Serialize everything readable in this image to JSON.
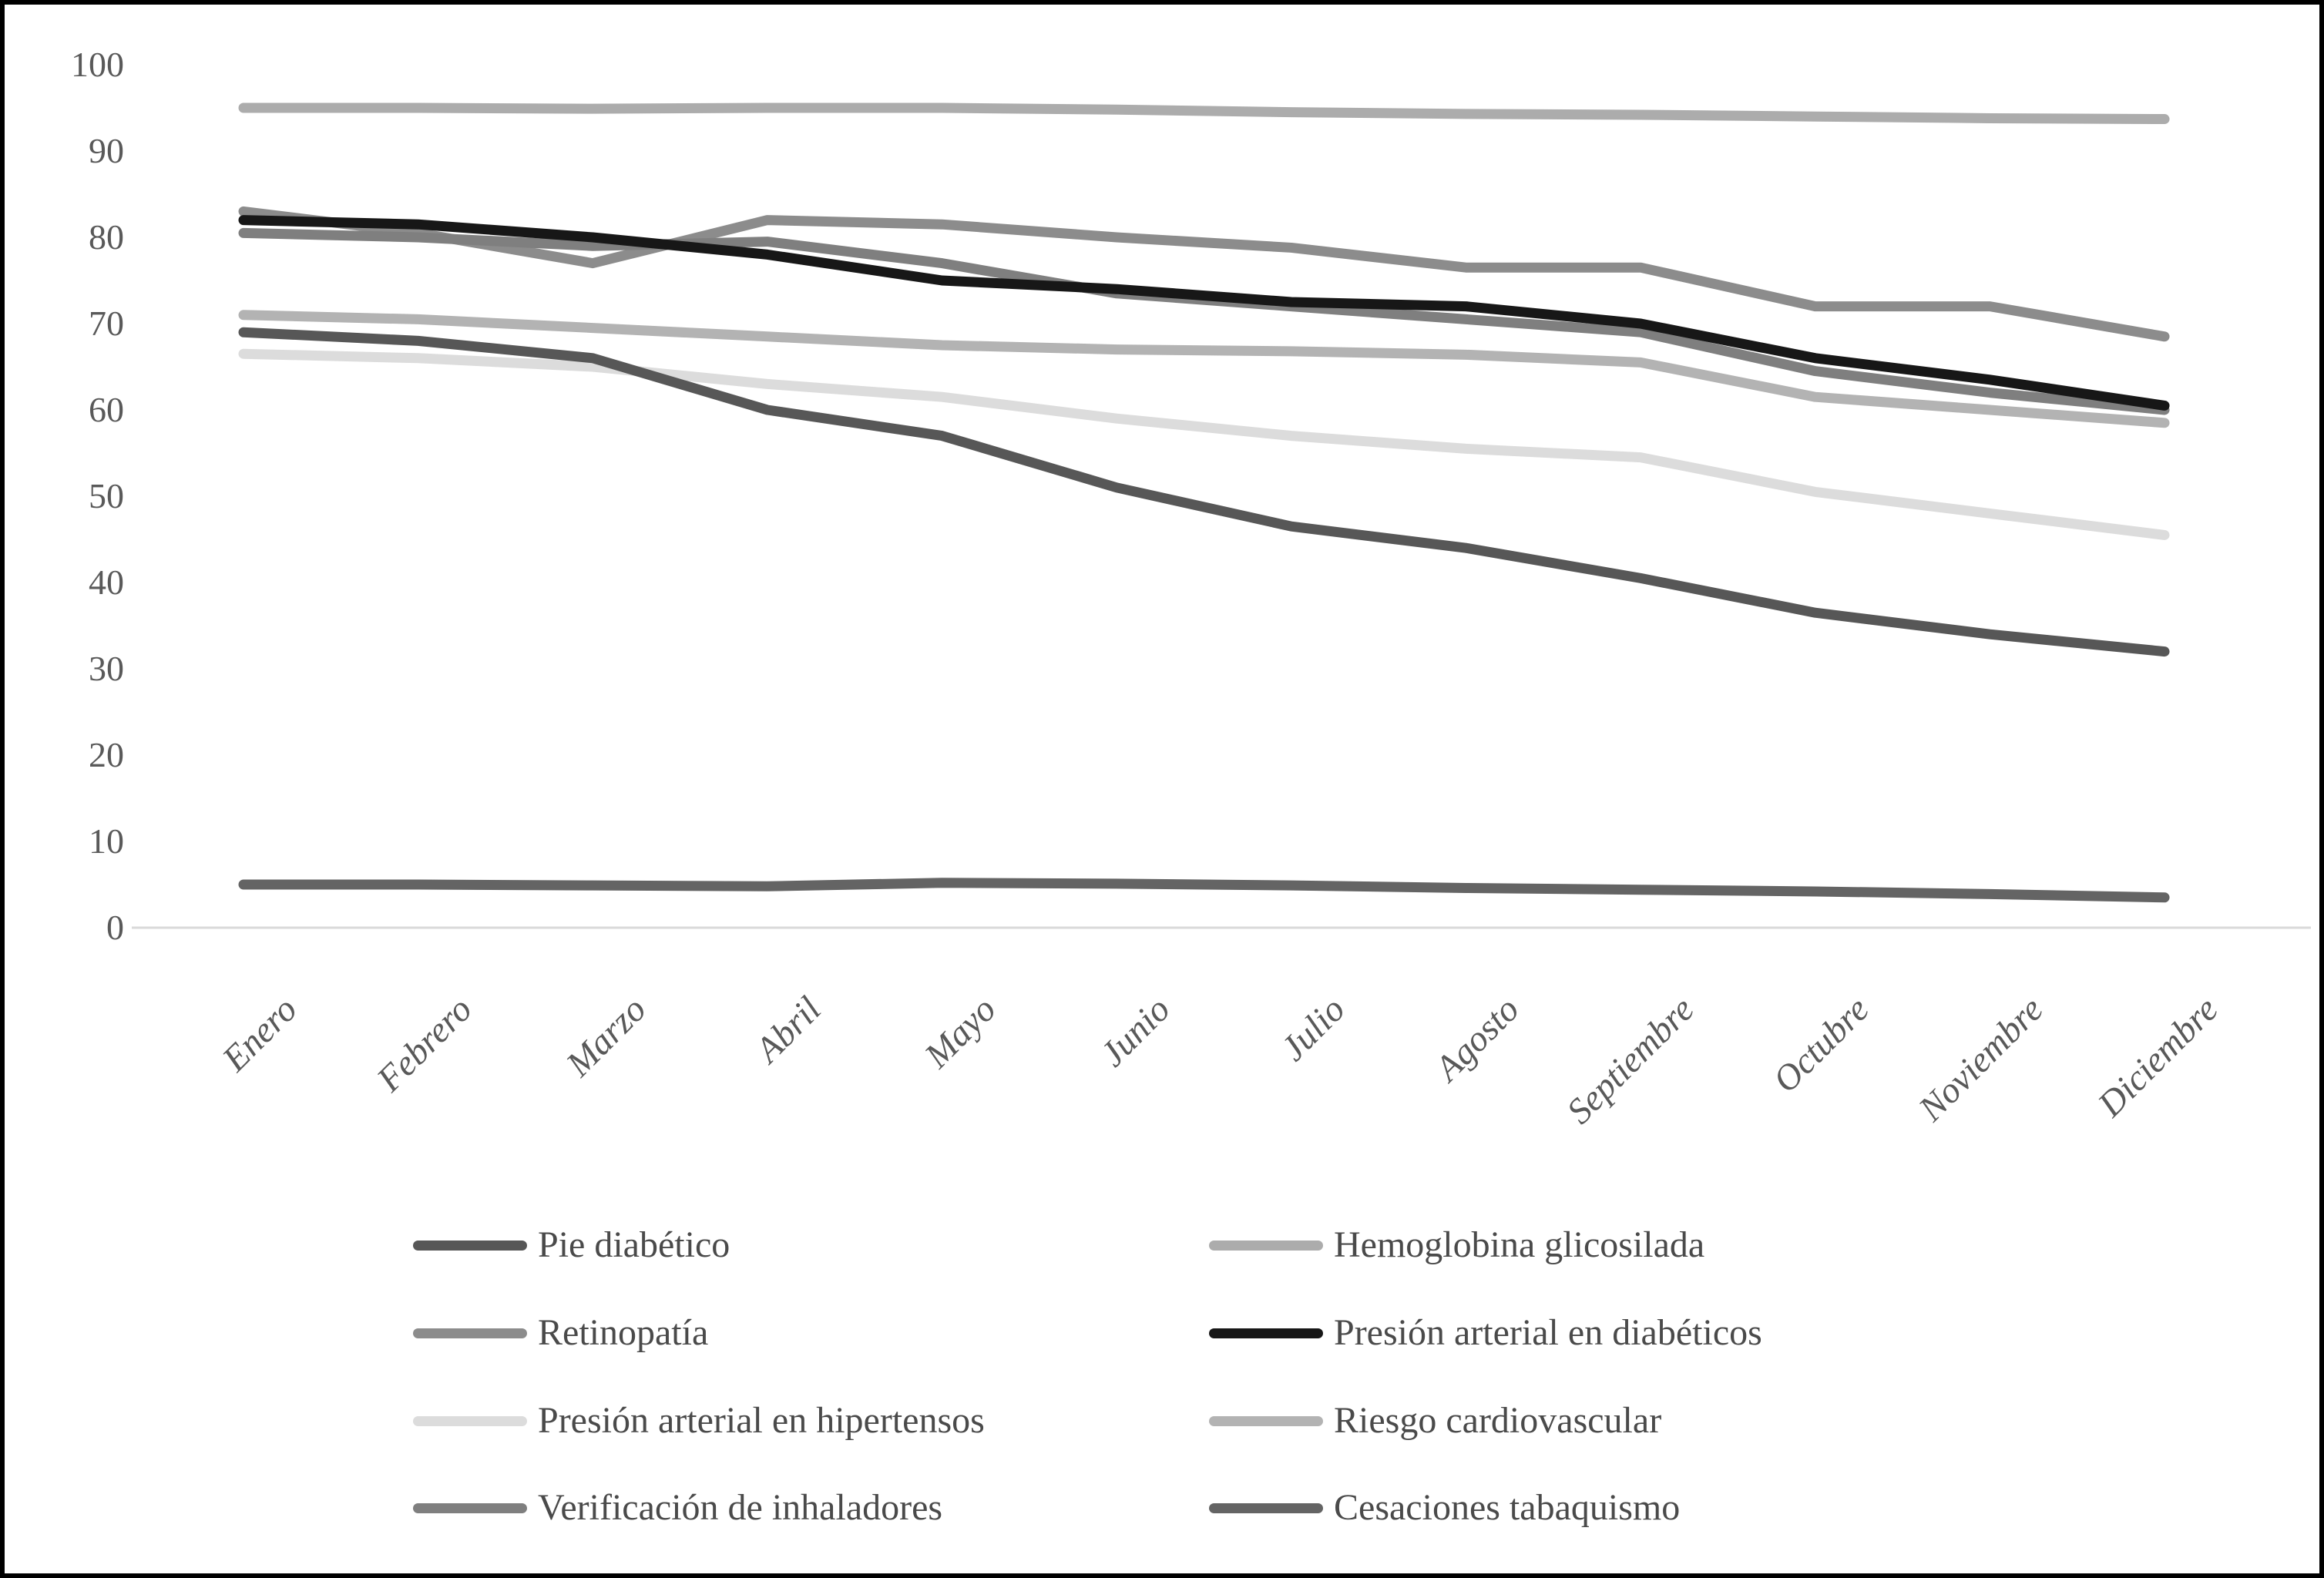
{
  "chart_data": {
    "type": "line",
    "title": "",
    "xlabel": "",
    "ylabel": "",
    "x_categories": [
      "Enero",
      "Febrero",
      "Marzo",
      "Abril",
      "Mayo",
      "Junio",
      "Julio",
      "Agosto",
      "Septiembre",
      "Octubre",
      "Noviembre",
      "Diciembre"
    ],
    "ylim": [
      0,
      100
    ],
    "y_ticks": [
      0,
      10,
      20,
      30,
      40,
      50,
      60,
      70,
      80,
      90,
      100
    ],
    "grid": false,
    "baseline_color": "#d9d9d9",
    "axis_text_color": "#595959",
    "legend_position": "bottom-two-columns",
    "series": [
      {
        "name": "Pie diabético",
        "color": "#575757",
        "values": [
          69,
          68,
          66,
          60,
          57,
          51,
          46.5,
          44,
          40.5,
          36.5,
          34,
          32
        ]
      },
      {
        "name": "Hemoglobina glicosilada",
        "color": "#acacac",
        "values": [
          95,
          95,
          94.9,
          95,
          95,
          94.8,
          94.5,
          94.3,
          94.2,
          94,
          93.8,
          93.7
        ]
      },
      {
        "name": "Retinopatía",
        "color": "#8c8c8c",
        "values": [
          83,
          80.5,
          77,
          82,
          81.5,
          80,
          78.8,
          76.5,
          76.5,
          72,
          72,
          68.5
        ]
      },
      {
        "name": "Presión arterial en diabéticos",
        "color": "#171717",
        "values": [
          82,
          81.5,
          80,
          78,
          75,
          74,
          72.5,
          72,
          70,
          66,
          63.5,
          60.5
        ]
      },
      {
        "name": "Presión arterial en hipertensos",
        "color": "#dcdcdc",
        "values": [
          66.5,
          66,
          65,
          63,
          61.5,
          59,
          57,
          55.5,
          54.5,
          50.5,
          48,
          45.5
        ]
      },
      {
        "name": "Riesgo cardiovascular",
        "color": "#b3b3b3",
        "values": [
          71,
          70.5,
          69.5,
          68.5,
          67.5,
          67,
          66.8,
          66.4,
          65.5,
          61.5,
          60,
          58.5
        ]
      },
      {
        "name": "Verificación de inhaladores",
        "color": "#7f7f7f",
        "values": [
          80.5,
          80,
          79,
          79.5,
          77,
          73.5,
          72,
          70.5,
          69,
          64.5,
          62,
          60
        ]
      },
      {
        "name": "Cesaciones tabaquismo",
        "color": "#646464",
        "values": [
          5,
          5,
          4.9,
          4.8,
          5.2,
          5.1,
          4.9,
          4.6,
          4.4,
          4.2,
          3.9,
          3.5
        ]
      }
    ],
    "draw_order": [
      "Hemoglobina glicosilada",
      "Riesgo cardiovascular",
      "Presión arterial en hipertensos",
      "Retinopatía",
      "Verificación de inhaladores",
      "Cesaciones tabaquismo",
      "Pie diabético",
      "Presión arterial en diabéticos"
    ]
  },
  "legend": {
    "columns": [
      {
        "items": [
          "Pie diabético",
          "Retinopatía",
          "Presión arterial en hipertensos",
          "Verificación de inhaladores"
        ]
      },
      {
        "items": [
          "Hemoglobina glicosilada",
          "Presión arterial en diabéticos",
          "Riesgo cardiovascular",
          "Cesaciones tabaquismo"
        ]
      }
    ]
  }
}
